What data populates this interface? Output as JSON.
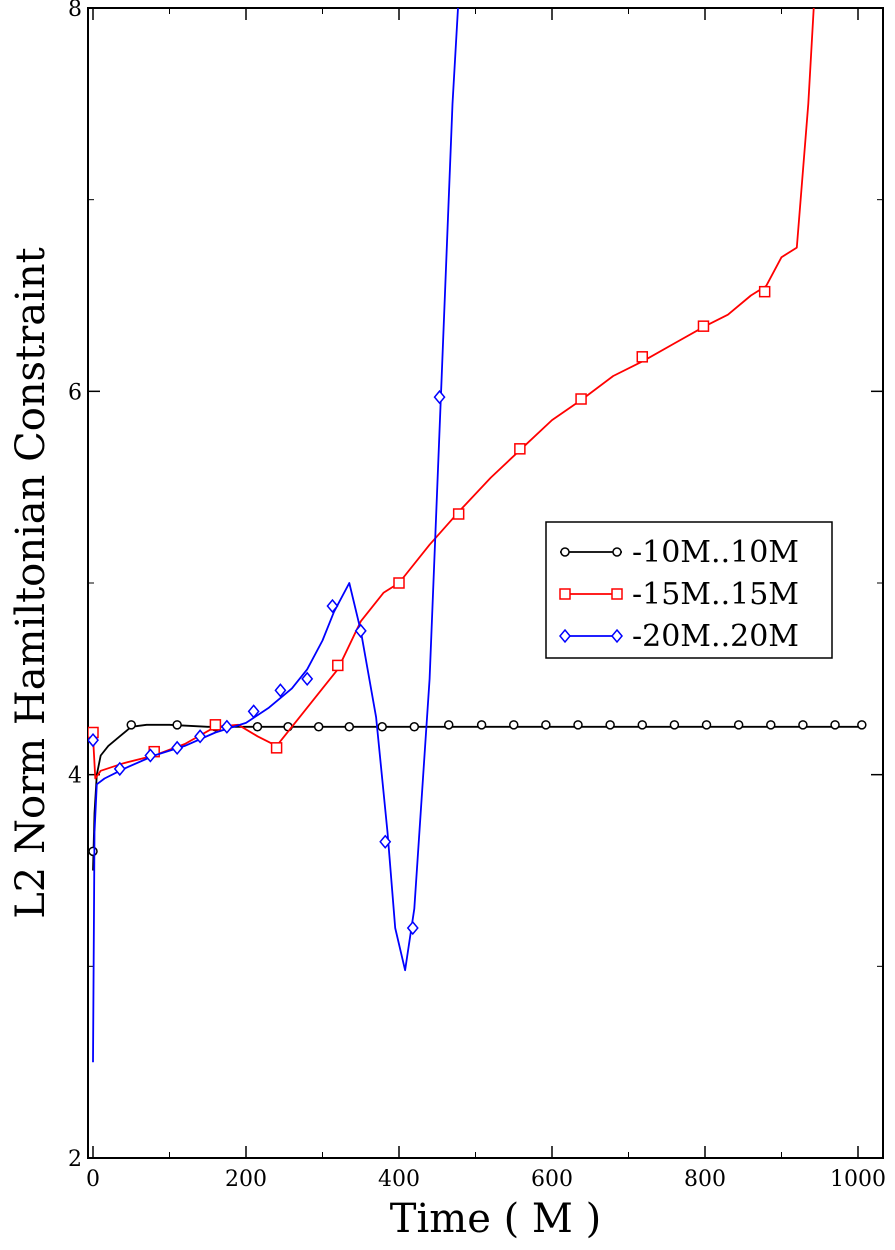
{
  "chart_data": {
    "type": "line",
    "title": "",
    "xlabel": "Time ( M )",
    "ylabel": "L2 Norm Hamiltonian Constraint",
    "xlim": [
      0,
      1000
    ],
    "ylim": [
      2,
      8
    ],
    "x_ticks": [
      0,
      200,
      400,
      600,
      800,
      1000
    ],
    "y_ticks": [
      2,
      4,
      6,
      8
    ],
    "x_tick_labels": [
      "0",
      "200",
      "400",
      "600",
      "800",
      "1000"
    ],
    "y_tick_labels": [
      "2",
      "4",
      "6",
      "8"
    ],
    "grid": false,
    "legend_position": "right-center",
    "series": [
      {
        "name": "-10M..10M",
        "color": "#000000",
        "marker": "circle",
        "line": [
          [
            0,
            3.5
          ],
          [
            2,
            3.8
          ],
          [
            5,
            4.0
          ],
          [
            10,
            4.1
          ],
          [
            20,
            4.15
          ],
          [
            35,
            4.2
          ],
          [
            50,
            4.25
          ],
          [
            70,
            4.26
          ],
          [
            100,
            4.26
          ],
          [
            150,
            4.25
          ],
          [
            200,
            4.25
          ],
          [
            300,
            4.25
          ],
          [
            500,
            4.25
          ],
          [
            800,
            4.25
          ],
          [
            1010,
            4.25
          ]
        ],
        "markers": [
          [
            0,
            3.6
          ],
          [
            50,
            4.26
          ],
          [
            110,
            4.26
          ],
          [
            160,
            4.25
          ],
          [
            215,
            4.25
          ],
          [
            255,
            4.25
          ],
          [
            295,
            4.25
          ],
          [
            335,
            4.25
          ],
          [
            378,
            4.25
          ],
          [
            420,
            4.25
          ],
          [
            465,
            4.26
          ],
          [
            508,
            4.26
          ],
          [
            550,
            4.26
          ],
          [
            592,
            4.26
          ],
          [
            634,
            4.26
          ],
          [
            676,
            4.26
          ],
          [
            718,
            4.26
          ],
          [
            760,
            4.26
          ],
          [
            802,
            4.26
          ],
          [
            844,
            4.26
          ],
          [
            886,
            4.26
          ],
          [
            928,
            4.26
          ],
          [
            970,
            4.26
          ],
          [
            1005,
            4.26
          ]
        ]
      },
      {
        "name": "-15M..15M",
        "color": "#ff0000",
        "marker": "square",
        "line": [
          [
            0,
            4.2
          ],
          [
            3,
            3.98
          ],
          [
            10,
            4.02
          ],
          [
            40,
            4.06
          ],
          [
            80,
            4.1
          ],
          [
            120,
            4.16
          ],
          [
            160,
            4.25
          ],
          [
            190,
            4.26
          ],
          [
            215,
            4.2
          ],
          [
            240,
            4.15
          ],
          [
            270,
            4.3
          ],
          [
            300,
            4.45
          ],
          [
            320,
            4.55
          ],
          [
            350,
            4.8
          ],
          [
            380,
            4.95
          ],
          [
            400,
            5.0
          ],
          [
            440,
            5.2
          ],
          [
            480,
            5.38
          ],
          [
            520,
            5.55
          ],
          [
            560,
            5.7
          ],
          [
            600,
            5.85
          ],
          [
            640,
            5.96
          ],
          [
            680,
            6.08
          ],
          [
            720,
            6.16
          ],
          [
            760,
            6.25
          ],
          [
            800,
            6.34
          ],
          [
            830,
            6.4
          ],
          [
            860,
            6.5
          ],
          [
            880,
            6.55
          ],
          [
            900,
            6.7
          ],
          [
            920,
            6.75
          ],
          [
            935,
            7.5
          ],
          [
            945,
            8.2
          ]
        ],
        "markers": [
          [
            0,
            4.22
          ],
          [
            80,
            4.12
          ],
          [
            160,
            4.26
          ],
          [
            240,
            4.14
          ],
          [
            320,
            4.57
          ],
          [
            400,
            5.0
          ],
          [
            478,
            5.36
          ],
          [
            558,
            5.7
          ],
          [
            638,
            5.96
          ],
          [
            718,
            6.18
          ],
          [
            798,
            6.34
          ],
          [
            878,
            6.52
          ]
        ]
      },
      {
        "name": "-20M..20M",
        "color": "#0000ff",
        "marker": "diamond",
        "line": [
          [
            0,
            2.5
          ],
          [
            2,
            3.7
          ],
          [
            5,
            3.95
          ],
          [
            15,
            3.98
          ],
          [
            40,
            4.03
          ],
          [
            80,
            4.1
          ],
          [
            120,
            4.15
          ],
          [
            160,
            4.22
          ],
          [
            200,
            4.27
          ],
          [
            230,
            4.35
          ],
          [
            260,
            4.45
          ],
          [
            280,
            4.55
          ],
          [
            300,
            4.7
          ],
          [
            315,
            4.85
          ],
          [
            335,
            5.0
          ],
          [
            350,
            4.75
          ],
          [
            370,
            4.3
          ],
          [
            385,
            3.7
          ],
          [
            395,
            3.2
          ],
          [
            408,
            2.98
          ],
          [
            420,
            3.3
          ],
          [
            440,
            4.5
          ],
          [
            455,
            6.0
          ],
          [
            470,
            7.5
          ],
          [
            480,
            8.2
          ]
        ],
        "markers": [
          [
            0,
            4.18
          ],
          [
            35,
            4.03
          ],
          [
            75,
            4.1
          ],
          [
            110,
            4.14
          ],
          [
            140,
            4.2
          ],
          [
            175,
            4.25
          ],
          [
            210,
            4.33
          ],
          [
            245,
            4.44
          ],
          [
            280,
            4.5
          ],
          [
            313,
            4.88
          ],
          [
            350,
            4.75
          ],
          [
            382,
            3.65
          ],
          [
            418,
            3.2
          ],
          [
            453,
            5.97
          ]
        ]
      }
    ]
  }
}
